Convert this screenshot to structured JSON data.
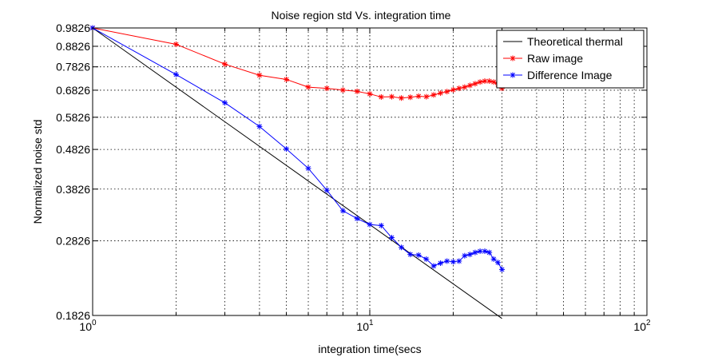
{
  "chart_data": {
    "type": "line",
    "title": "Noise region std Vs. integration timе",
    "xlabel": "integration time(secs",
    "ylabel": "Normalized noise std",
    "x_scale": "log",
    "y_scale": "log",
    "xlim": [
      1,
      100
    ],
    "ylim": [
      0.1826,
      0.9826
    ],
    "x_ticks": [
      1,
      10,
      100
    ],
    "x_tick_labels": [
      {
        "base": "10",
        "exp": "0"
      },
      {
        "base": "10",
        "exp": "1"
      },
      {
        "base": "10",
        "exp": "2"
      }
    ],
    "y_ticks": [
      0.1826,
      0.2826,
      0.3826,
      0.4826,
      0.5826,
      0.6826,
      0.7826,
      0.8826,
      0.9826
    ],
    "y_tick_labels": [
      "0.1826",
      "0.2826",
      "0.3826",
      "0.4826",
      "0.5826",
      "0.6826",
      "0.7826",
      "0.8826",
      "0.9826"
    ],
    "grid": true,
    "legend_position": "top-right",
    "series": [
      {
        "name": "Theoretical thermal",
        "color": "#000000",
        "marker": "none",
        "x": [
          1,
          30
        ],
        "y": [
          0.9826,
          0.1794
        ]
      },
      {
        "name": "Raw image",
        "color": "#ff0000",
        "marker": "star",
        "x": [
          1,
          2,
          3,
          4,
          5,
          6,
          7,
          8,
          9,
          10,
          11,
          12,
          13,
          14,
          15,
          16,
          17,
          18,
          19,
          20,
          21,
          22,
          23,
          24,
          25,
          26,
          27,
          28,
          29,
          30
        ],
        "y": [
          0.9826,
          0.893,
          0.795,
          0.745,
          0.727,
          0.695,
          0.69,
          0.683,
          0.678,
          0.668,
          0.656,
          0.657,
          0.652,
          0.655,
          0.659,
          0.657,
          0.664,
          0.671,
          0.677,
          0.684,
          0.69,
          0.695,
          0.702,
          0.709,
          0.716,
          0.72,
          0.72,
          0.716,
          0.706,
          0.69
        ]
      },
      {
        "name": "Difference Image",
        "color": "#0000ff",
        "marker": "star",
        "x": [
          1,
          2,
          3,
          4,
          5,
          6,
          7,
          8,
          9,
          10,
          11,
          12,
          13,
          14,
          15,
          16,
          17,
          18,
          19,
          20,
          21,
          22,
          23,
          24,
          25,
          26,
          27,
          28,
          29,
          30
        ],
        "y": [
          0.9826,
          0.748,
          0.634,
          0.552,
          0.484,
          0.432,
          0.38,
          0.337,
          0.322,
          0.311,
          0.309,
          0.288,
          0.272,
          0.261,
          0.26,
          0.254,
          0.244,
          0.248,
          0.251,
          0.25,
          0.251,
          0.259,
          0.261,
          0.264,
          0.266,
          0.266,
          0.264,
          0.254,
          0.249,
          0.239
        ]
      }
    ]
  }
}
